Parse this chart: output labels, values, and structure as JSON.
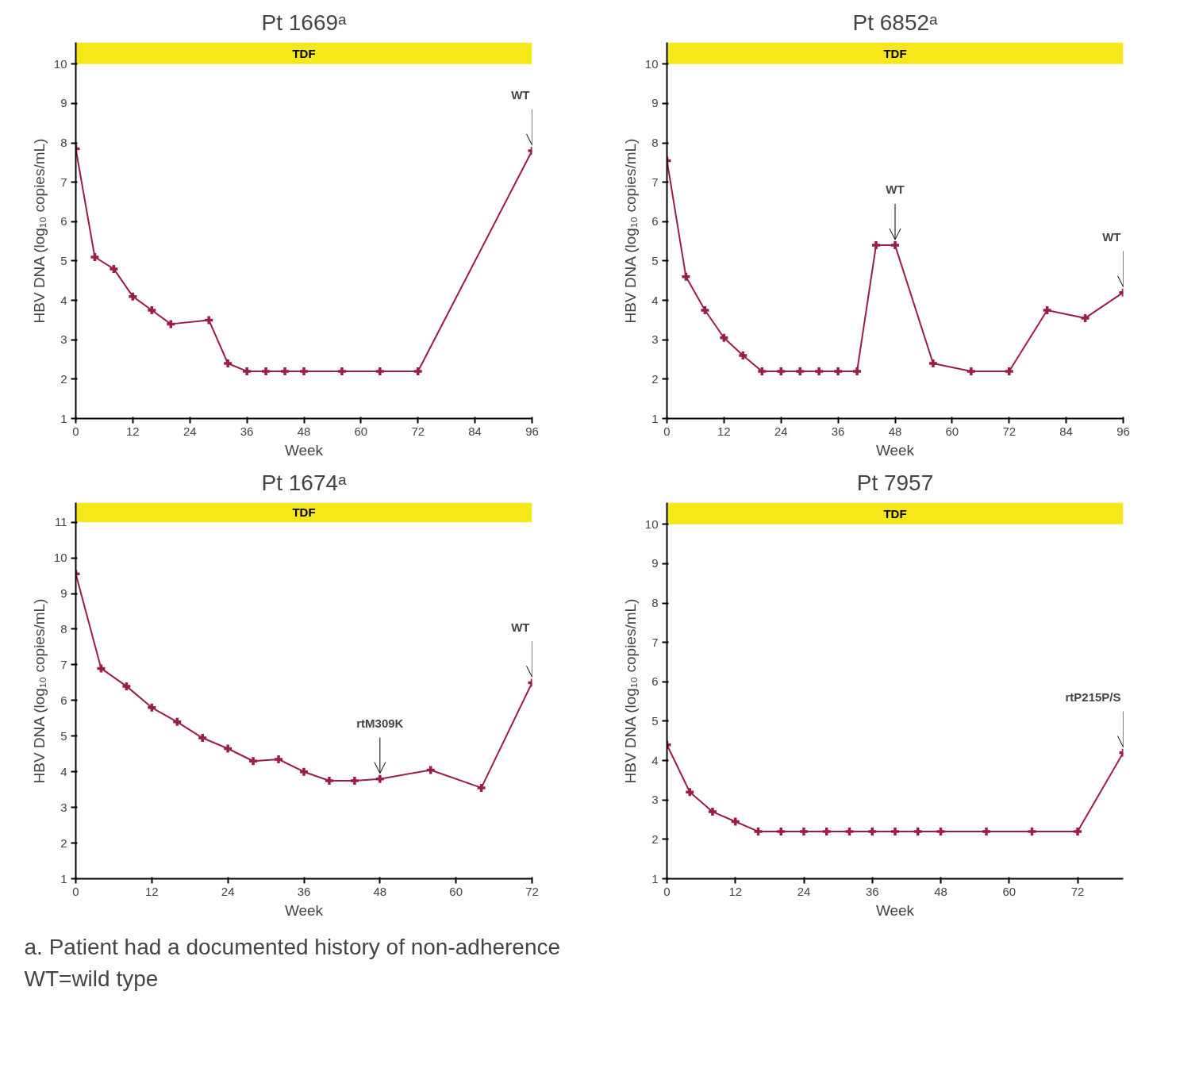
{
  "chart_data": [
    {
      "type": "line",
      "title": "Pt 1669ᵃ",
      "xlabel": "Week",
      "ylabel": "HBV DNA (log₁₀ copies/mL)",
      "xlim": [
        0,
        96
      ],
      "ylim": [
        1,
        10.55
      ],
      "xticks": [
        0,
        12,
        24,
        36,
        48,
        60,
        72,
        84,
        96
      ],
      "yticks": [
        1,
        2,
        3,
        4,
        5,
        6,
        7,
        8,
        9,
        10
      ],
      "grid": false,
      "marker": "cross",
      "line_style": "solid",
      "bands": [
        {
          "axis": "x",
          "from": 0,
          "to": 96,
          "label": "TDF",
          "color": "#f5e71a"
        }
      ],
      "annotations": [
        {
          "text": "WT",
          "x": 96,
          "y": 7.8
        }
      ],
      "series": [
        {
          "color": "#9b1b4b",
          "x": [
            0,
            4,
            8,
            12,
            16,
            20,
            28,
            32,
            36,
            40,
            44,
            48,
            56,
            64,
            72,
            96
          ],
          "values": [
            7.85,
            5.1,
            4.8,
            4.1,
            3.75,
            3.4,
            3.5,
            2.4,
            2.2,
            2.2,
            2.2,
            2.2,
            2.2,
            2.2,
            2.2,
            7.8
          ]
        }
      ]
    },
    {
      "type": "line",
      "title": "Pt 6852ᵃ",
      "xlabel": "Week",
      "ylabel": "HBV DNA (log₁₀ copies/mL)",
      "xlim": [
        0,
        96
      ],
      "ylim": [
        1,
        10.55
      ],
      "xticks": [
        0,
        12,
        24,
        36,
        48,
        60,
        72,
        84,
        96
      ],
      "yticks": [
        1,
        2,
        3,
        4,
        5,
        6,
        7,
        8,
        9,
        10
      ],
      "grid": false,
      "marker": "cross",
      "line_style": "solid",
      "bands": [
        {
          "axis": "x",
          "from": 0,
          "to": 96,
          "label": "TDF",
          "color": "#f5e71a"
        }
      ],
      "annotations": [
        {
          "text": "WT",
          "x": 48,
          "y": 5.4
        },
        {
          "text": "WT",
          "x": 96,
          "y": 4.2
        }
      ],
      "series": [
        {
          "color": "#9b1b4b",
          "x": [
            0,
            4,
            8,
            12,
            16,
            20,
            24,
            28,
            32,
            36,
            40,
            44,
            48,
            56,
            64,
            72,
            80,
            88,
            96
          ],
          "values": [
            7.55,
            4.6,
            3.75,
            3.05,
            2.6,
            2.2,
            2.2,
            2.2,
            2.2,
            2.2,
            2.2,
            5.4,
            5.4,
            2.4,
            2.2,
            2.2,
            3.75,
            3.55,
            4.2
          ]
        }
      ]
    },
    {
      "type": "line",
      "title": "Pt 1674ᵃ",
      "xlabel": "Week",
      "ylabel": "HBV DNA (log₁₀ copies/mL)",
      "xlim": [
        0,
        72
      ],
      "ylim": [
        1,
        11.55
      ],
      "xticks": [
        0,
        12,
        24,
        36,
        48,
        60,
        72
      ],
      "yticks": [
        1,
        2,
        3,
        4,
        5,
        6,
        7,
        8,
        9,
        10,
        11
      ],
      "grid": false,
      "marker": "cross",
      "line_style": "solid",
      "bands": [
        {
          "axis": "x",
          "from": 0,
          "to": 72,
          "label": "TDF",
          "color": "#f5e71a"
        }
      ],
      "annotations": [
        {
          "text": "rtM309K",
          "x": 48,
          "y": 3.8
        },
        {
          "text": "WT",
          "x": 72,
          "y": 6.5
        },
        "a.  Patient had a documented history of non-adherence",
        "WT=wild type"
      ],
      "series": [
        {
          "color": "#9b1b4b",
          "x": [
            0,
            4,
            8,
            12,
            16,
            20,
            24,
            28,
            32,
            36,
            40,
            44,
            48,
            56,
            64,
            72
          ],
          "values": [
            9.55,
            6.9,
            6.4,
            5.8,
            5.4,
            4.95,
            4.65,
            4.3,
            4.35,
            4.0,
            3.75,
            3.75,
            3.8,
            4.05,
            3.55,
            6.5
          ]
        }
      ]
    },
    {
      "type": "line",
      "title": "Pt 7957",
      "xlabel": "Week",
      "ylabel": "HBV DNA (log₁₀ copies/mL)",
      "xlim": [
        0,
        80
      ],
      "ylim": [
        1,
        10.55
      ],
      "xticks": [
        0,
        12,
        24,
        36,
        48,
        60,
        72
      ],
      "yticks": [
        1,
        2,
        3,
        4,
        5,
        6,
        7,
        8,
        9,
        10
      ],
      "grid": false,
      "marker": "cross",
      "line_style": "solid",
      "bands": [
        {
          "axis": "x",
          "from": 0,
          "to": 80,
          "label": "TDF",
          "color": "#f5e71a"
        }
      ],
      "annotations": [
        {
          "text": "rtP215P/S",
          "x": 80,
          "y": 4.2
        }
      ],
      "series": [
        {
          "color": "#9b1b4b",
          "x": [
            0,
            4,
            8,
            12,
            16,
            20,
            24,
            28,
            32,
            36,
            40,
            44,
            48,
            56,
            64,
            72,
            80
          ],
          "values": [
            4.4,
            3.2,
            2.7,
            2.45,
            2.2,
            2.2,
            2.2,
            2.2,
            2.2,
            2.2,
            2.2,
            2.2,
            2.2,
            2.2,
            2.2,
            2.2,
            4.2
          ]
        }
      ]
    }
  ]
}
